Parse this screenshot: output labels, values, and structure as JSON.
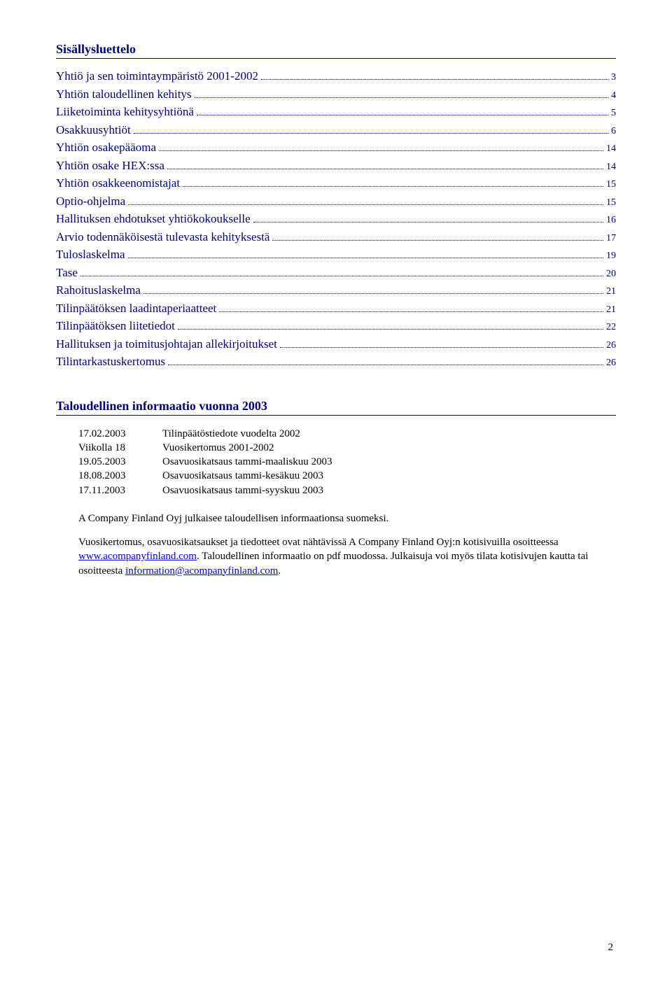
{
  "toc": {
    "title": "Sisällysluettelo",
    "items": [
      {
        "label": "Yhtiö ja sen toimintaympäristö 2001-2002",
        "page": "3"
      },
      {
        "label": "Yhtiön taloudellinen kehitys",
        "page": "4"
      },
      {
        "label": "Liiketoiminta kehitysyhtiönä",
        "page": "5"
      },
      {
        "label": "Osakkuusyhtiöt",
        "page": "6"
      },
      {
        "label": "Yhtiön osakepääoma",
        "page": "14"
      },
      {
        "label": "Yhtiön osake HEX:ssa",
        "page": "14"
      },
      {
        "label": "Yhtiön osakkeenomistajat",
        "page": "15"
      },
      {
        "label": "Optio-ohjelma",
        "page": "15"
      },
      {
        "label": "Hallituksen ehdotukset yhtiökokoukselle",
        "page": "16"
      },
      {
        "label": "Arvio todennäköisestä tulevasta kehityksestä",
        "page": "17"
      },
      {
        "label": "Tuloslaskelma",
        "page": "19"
      },
      {
        "label": "Tase",
        "page": "20"
      },
      {
        "label": "Rahoituslaskelma",
        "page": "21"
      },
      {
        "label": "Tilinpäätöksen laadintaperiaatteet",
        "page": "21"
      },
      {
        "label": "Tilinpäätöksen liitetiedot",
        "page": "22"
      },
      {
        "label": "Hallituksen ja toimitusjohtajan allekirjoitukset",
        "page": "26"
      },
      {
        "label": "Tilintarkastuskertomus",
        "page": "26"
      }
    ]
  },
  "info": {
    "title": "Taloudellinen informaatio vuonna 2003",
    "schedule": [
      {
        "date": "17.02.2003",
        "desc": "Tilinpäätöstiedote vuodelta 2002"
      },
      {
        "date": "Viikolla 18",
        "desc": "Vuosikertomus 2001-2002"
      },
      {
        "date": "19.05.2003",
        "desc": "Osavuosikatsaus tammi-maaliskuu 2003"
      },
      {
        "date": "18.08.2003",
        "desc": "Osavuosikatsaus tammi-kesäkuu 2003"
      },
      {
        "date": "17.11.2003",
        "desc": "Osavuosikatsaus tammi-syyskuu 2003"
      }
    ],
    "para1": "A Company Finland Oyj julkaisee taloudellisen informaationsa suomeksi.",
    "para2_a": "Vuosikertomus, osavuosikatsaukset ja tiedotteet ovat nähtävissä A Company Finland Oyj:n kotisivuilla osoitteessa ",
    "link1": "www.acompanyfinland.com",
    "para2_b": ". Taloudellinen informaatio on pdf muodossa. Julkaisuja voi myös tilata kotisivujen kautta tai osoitteesta ",
    "link2": "information@acompanyfinland.com",
    "para2_c": "."
  },
  "page_number": "2",
  "colors": {
    "heading": "#000080",
    "link": "#0000ee",
    "text": "#000000",
    "background": "#ffffff"
  },
  "typography": {
    "body_family": "Times New Roman",
    "heading_size_pt": 14,
    "toc_size_pt": 13,
    "body_size_pt": 11
  }
}
